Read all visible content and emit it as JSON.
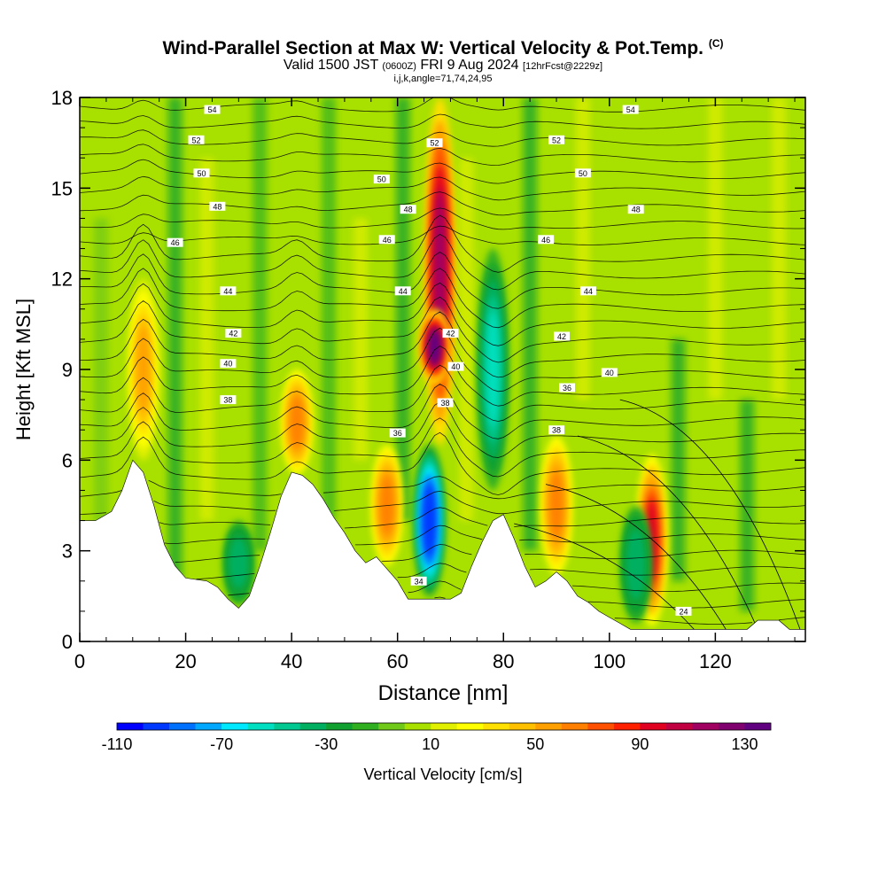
{
  "title": {
    "main": "Wind-Parallel Section at Max W: Vertical Velocity & Pot.Temp.",
    "copyright": "(C)",
    "valid_prefix": "Valid 1500 JST",
    "utc": "(0600Z)",
    "date": "FRI 9 Aug 2024",
    "forecast": "[12hrFcst@2229z]",
    "ijk": "i,j,k,angle=71,74,24,95"
  },
  "chart_data": {
    "type": "heatmap",
    "xlabel": "Distance [nm]",
    "ylabel": "Height [Kft MSL]",
    "xlim": [
      0,
      137
    ],
    "ylim": [
      0,
      18
    ],
    "x_ticks": [
      0,
      20,
      40,
      60,
      80,
      100,
      120
    ],
    "y_ticks": [
      0,
      3,
      6,
      9,
      12,
      15,
      18
    ],
    "colorbar": {
      "label": "Vertical Velocity [cm/s]",
      "min": -110,
      "max": 140,
      "step": 10,
      "tick_labels": [
        -110,
        -70,
        -30,
        10,
        50,
        90,
        130
      ],
      "colors": [
        "#0000ff",
        "#0038ff",
        "#0070ff",
        "#00a8ff",
        "#00e8ff",
        "#00e0c0",
        "#00c890",
        "#00b060",
        "#10a030",
        "#30b020",
        "#70c818",
        "#a8e000",
        "#e0f000",
        "#ffff00",
        "#ffe000",
        "#ffc000",
        "#ffa000",
        "#ff8000",
        "#ff5000",
        "#ff2000",
        "#e00020",
        "#c00040",
        "#a00060",
        "#800070",
        "#600080"
      ]
    },
    "terrain_kft": [
      [
        0,
        4
      ],
      [
        3,
        4
      ],
      [
        6,
        4.3
      ],
      [
        8,
        5
      ],
      [
        10,
        6
      ],
      [
        12,
        5.6
      ],
      [
        14,
        4.5
      ],
      [
        16,
        3.2
      ],
      [
        18,
        2.5
      ],
      [
        20,
        2.1
      ],
      [
        24,
        2
      ],
      [
        26,
        1.8
      ],
      [
        28,
        1.4
      ],
      [
        30,
        1.1
      ],
      [
        32,
        1.5
      ],
      [
        34,
        2.5
      ],
      [
        36,
        3.6
      ],
      [
        38,
        4.8
      ],
      [
        40,
        5.6
      ],
      [
        42,
        5.5
      ],
      [
        44,
        5.2
      ],
      [
        46,
        4.7
      ],
      [
        48,
        4.1
      ],
      [
        50,
        3.6
      ],
      [
        52,
        3.0
      ],
      [
        54,
        2.6
      ],
      [
        56,
        2.8
      ],
      [
        58,
        2.4
      ],
      [
        60,
        2.0
      ],
      [
        62,
        1.4
      ],
      [
        70,
        1.4
      ],
      [
        72,
        1.6
      ],
      [
        74,
        2.5
      ],
      [
        76,
        3.3
      ],
      [
        78,
        4.0
      ],
      [
        80,
        4.2
      ],
      [
        82,
        3.4
      ],
      [
        84,
        2.5
      ],
      [
        86,
        1.8
      ],
      [
        88,
        2.0
      ],
      [
        90,
        2.3
      ],
      [
        92,
        2.0
      ],
      [
        94,
        1.5
      ],
      [
        96,
        1.3
      ],
      [
        98,
        1.0
      ],
      [
        100,
        0.8
      ],
      [
        102,
        0.6
      ],
      [
        104,
        0.4
      ],
      [
        106,
        0.4
      ],
      [
        126,
        0.4
      ],
      [
        128,
        0.7
      ],
      [
        132,
        0.7
      ],
      [
        134,
        0.4
      ],
      [
        137,
        0.4
      ]
    ],
    "vertical_velocity_features": [
      {
        "x": 68,
        "bottom_kft": 6.5,
        "top_kft": 18,
        "peak_cms": 110
      },
      {
        "x": 67,
        "bottom_kft": 8.5,
        "top_kft": 11,
        "peak_cms": 130
      },
      {
        "x": 108,
        "bottom_kft": 0.5,
        "top_kft": 6.2,
        "peak_cms": 90
      },
      {
        "x": 58,
        "bottom_kft": 2.5,
        "top_kft": 6.5,
        "peak_cms": 60
      },
      {
        "x": 41,
        "bottom_kft": 5.5,
        "top_kft": 9.0,
        "peak_cms": 60
      },
      {
        "x": 90,
        "bottom_kft": 2.2,
        "top_kft": 6.8,
        "peak_cms": 60
      },
      {
        "x": 12,
        "bottom_kft": 6.0,
        "top_kft": 12.0,
        "peak_cms": 50
      },
      {
        "x": 66,
        "bottom_kft": 1.5,
        "top_kft": 6.5,
        "peak_cms": -100
      },
      {
        "x": 78,
        "bottom_kft": 5.0,
        "top_kft": 13.0,
        "peak_cms": -60
      },
      {
        "x": 30,
        "bottom_kft": 1.2,
        "top_kft": 4.0,
        "peak_cms": -40
      },
      {
        "x": 105,
        "bottom_kft": 0.6,
        "top_kft": 4.5,
        "peak_cms": -40
      }
    ],
    "theta_contours": [
      {
        "label": "24",
        "y_kft": 1.0,
        "label_x": 114
      },
      {
        "label": "34",
        "y_kft": 2.0,
        "label_x": 64
      },
      {
        "label": "36",
        "y_kft": 6.9,
        "label_x": 60
      },
      {
        "label": "36",
        "y_kft": 8.4,
        "label_x": 92
      },
      {
        "label": "38",
        "y_kft": 8.0,
        "label_x": 28
      },
      {
        "label": "38",
        "y_kft": 7.0,
        "label_x": 90
      },
      {
        "label": "38",
        "y_kft": 7.9,
        "label_x": 69
      },
      {
        "label": "40",
        "y_kft": 9.2,
        "label_x": 28
      },
      {
        "label": "40",
        "y_kft": 9.1,
        "label_x": 71
      },
      {
        "label": "40",
        "y_kft": 8.9,
        "label_x": 100
      },
      {
        "label": "42",
        "y_kft": 10.2,
        "label_x": 29
      },
      {
        "label": "42",
        "y_kft": 10.2,
        "label_x": 70
      },
      {
        "label": "42",
        "y_kft": 10.1,
        "label_x": 91
      },
      {
        "label": "44",
        "y_kft": 11.6,
        "label_x": 28
      },
      {
        "label": "44",
        "y_kft": 11.6,
        "label_x": 61
      },
      {
        "label": "44",
        "y_kft": 11.6,
        "label_x": 96
      },
      {
        "label": "46",
        "y_kft": 13.2,
        "label_x": 18
      },
      {
        "label": "46",
        "y_kft": 13.3,
        "label_x": 58
      },
      {
        "label": "46",
        "y_kft": 13.3,
        "label_x": 88
      },
      {
        "label": "48",
        "y_kft": 14.4,
        "label_x": 26
      },
      {
        "label": "48",
        "y_kft": 14.3,
        "label_x": 62
      },
      {
        "label": "48",
        "y_kft": 14.3,
        "label_x": 105
      },
      {
        "label": "50",
        "y_kft": 15.5,
        "label_x": 23
      },
      {
        "label": "50",
        "y_kft": 15.3,
        "label_x": 57
      },
      {
        "label": "50",
        "y_kft": 15.5,
        "label_x": 95
      },
      {
        "label": "52",
        "y_kft": 16.6,
        "label_x": 22
      },
      {
        "label": "52",
        "y_kft": 16.5,
        "label_x": 67
      },
      {
        "label": "52",
        "y_kft": 16.6,
        "label_x": 90
      },
      {
        "label": "54",
        "y_kft": 17.6,
        "label_x": 25
      },
      {
        "label": "54",
        "y_kft": 17.6,
        "label_x": 104
      }
    ]
  }
}
